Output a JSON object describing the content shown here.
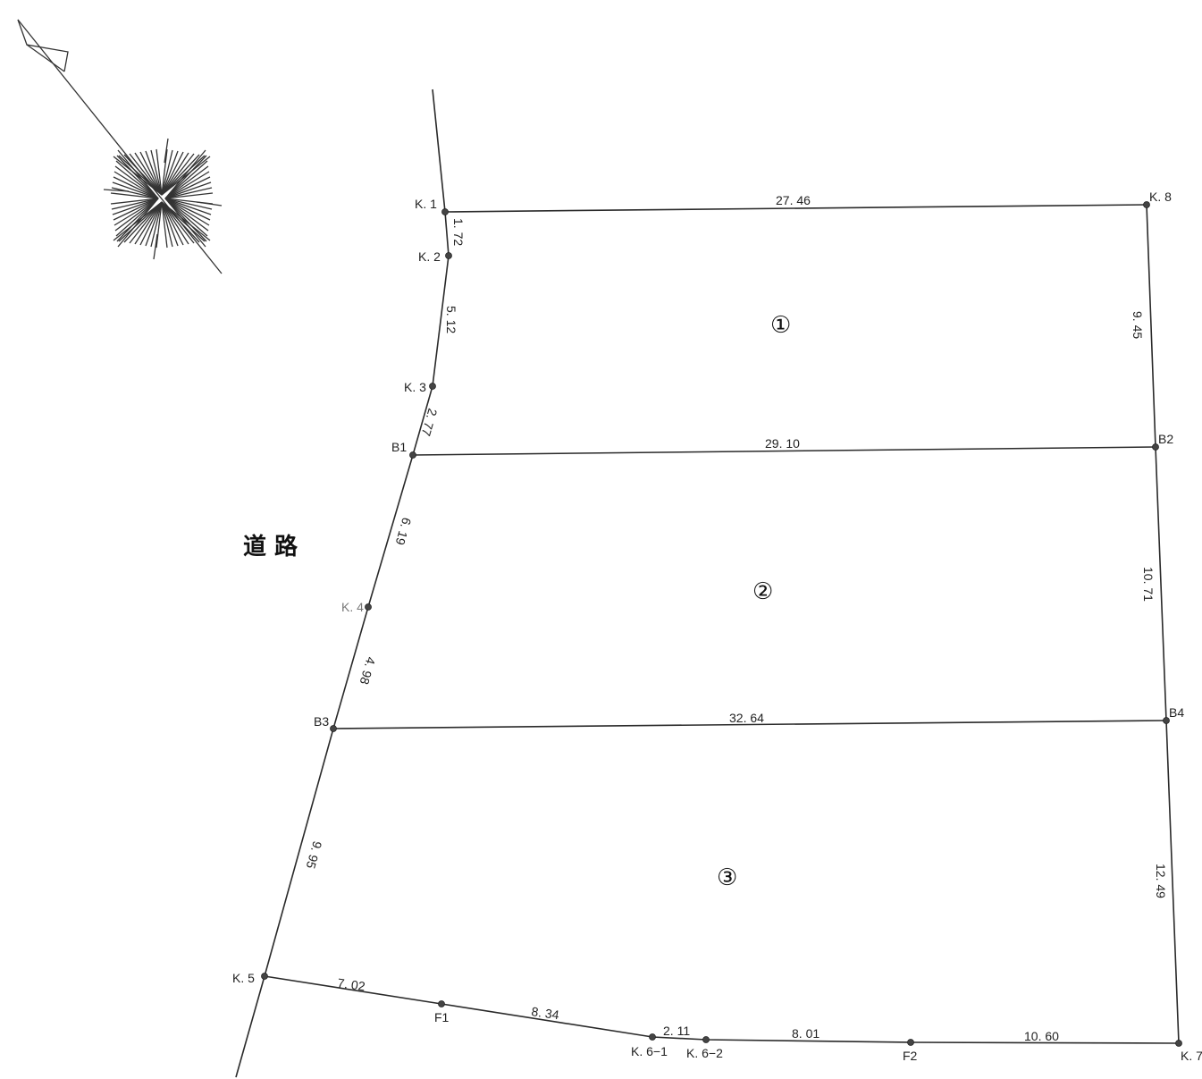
{
  "points": {
    "K1": "K. 1",
    "K2": "K. 2",
    "K3": "K. 3",
    "B1": "B1",
    "K4": "K. 4",
    "B3": "B3",
    "K5": "K. 5",
    "F1": "F1",
    "K6_1": "K. 6−1",
    "K6_2": "K. 6−2",
    "F2": "F2",
    "K7": "K. 7",
    "B4": "B4",
    "B2": "B2",
    "K8": "K. 8"
  },
  "dimensions": {
    "k1_k8": "27. 46",
    "k1_k2": "1. 72",
    "k2_k3": "5. 12",
    "k3_b1": "2. 77",
    "k8_b2": "9. 45",
    "b1_b2": "29. 10",
    "b1_k4": "6. 19",
    "b2_b4": "10. 71",
    "k4_b3": "4. 98",
    "b3_b4": "32. 64",
    "b3_k5": "9. 95",
    "b4_k7": "12. 49",
    "k5_f1": "7. 02",
    "f1_k6_1": "8. 34",
    "k6_1_k6_2": "2. 11",
    "k6_2_f2": "8. 01",
    "f2_k7": "10. 60"
  },
  "lots": [
    "①",
    "②",
    "③"
  ],
  "road_label": "道 路",
  "compass_icon": "north-arrow-icon"
}
